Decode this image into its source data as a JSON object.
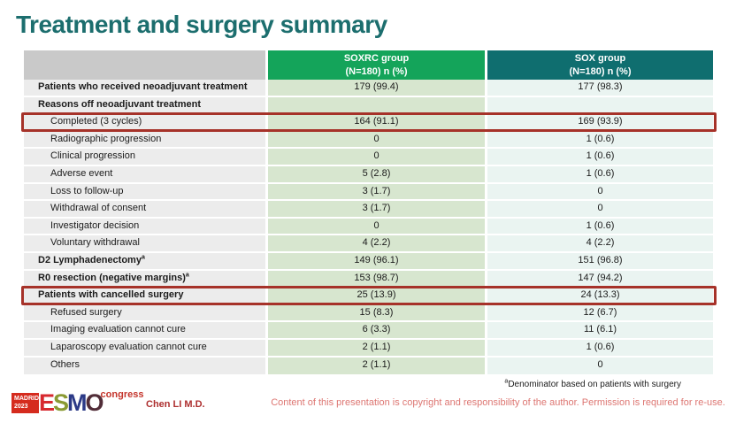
{
  "slide": {
    "title": "Treatment and surgery summary"
  },
  "table": {
    "headers": {
      "col1": "",
      "col2_line1": "SOXRC group",
      "col2_line2": "(N=180)  n (%)",
      "col3_line1": "SOX group",
      "col3_line2": "(N=180)  n (%)"
    },
    "rows": [
      {
        "label": "Patients who received neoadjuvant treatment",
        "bold": true,
        "indent": false,
        "highlight": false,
        "v1": "179 (99.4)",
        "v2": "177 (98.3)"
      },
      {
        "label": "Reasons off neoadjuvant treatment",
        "bold": true,
        "indent": false,
        "highlight": false,
        "v1": "",
        "v2": ""
      },
      {
        "label": "Completed (3 cycles)",
        "bold": false,
        "indent": true,
        "highlight": true,
        "v1": "164 (91.1)",
        "v2": "169 (93.9)"
      },
      {
        "label": "Radiographic progression",
        "bold": false,
        "indent": true,
        "highlight": false,
        "v1": "0",
        "v2": "1 (0.6)"
      },
      {
        "label": "Clinical progression",
        "bold": false,
        "indent": true,
        "highlight": false,
        "v1": "0",
        "v2": "1 (0.6)"
      },
      {
        "label": "Adverse event",
        "bold": false,
        "indent": true,
        "highlight": false,
        "v1": "5 (2.8)",
        "v2": "1 (0.6)"
      },
      {
        "label": "Loss to follow-up",
        "bold": false,
        "indent": true,
        "highlight": false,
        "v1": "3 (1.7)",
        "v2": "0"
      },
      {
        "label": "Withdrawal of consent",
        "bold": false,
        "indent": true,
        "highlight": false,
        "v1": "3 (1.7)",
        "v2": "0"
      },
      {
        "label": "Investigator decision",
        "bold": false,
        "indent": true,
        "highlight": false,
        "v1": "0",
        "v2": "1 (0.6)"
      },
      {
        "label": "Voluntary withdrawal",
        "bold": false,
        "indent": true,
        "highlight": false,
        "v1": "4 (2.2)",
        "v2": "4 (2.2)"
      },
      {
        "label": "D2 Lymphadenectomy",
        "sup": "a",
        "bold": true,
        "indent": false,
        "highlight": false,
        "v1": "149 (96.1)",
        "v2": "151 (96.8)"
      },
      {
        "label": "R0 resection (negative margins)",
        "sup": "a",
        "bold": true,
        "indent": false,
        "highlight": false,
        "v1": "153 (98.7)",
        "v2": "147 (94.2)"
      },
      {
        "label": "Patients with cancelled surgery",
        "bold": true,
        "indent": false,
        "highlight": true,
        "v1": "25 (13.9)",
        "v2": "24 (13.3)"
      },
      {
        "label": "Refused surgery",
        "bold": false,
        "indent": true,
        "highlight": false,
        "v1": "15 (8.3)",
        "v2": "12 (6.7)"
      },
      {
        "label": "Imaging evaluation cannot cure",
        "bold": false,
        "indent": true,
        "highlight": false,
        "v1": "6 (3.3)",
        "v2": "11 (6.1)"
      },
      {
        "label": "Laparoscopy evaluation cannot cure",
        "bold": false,
        "indent": true,
        "highlight": false,
        "v1": "2 (1.1)",
        "v2": "1 (0.6)"
      },
      {
        "label": "Others",
        "bold": false,
        "indent": true,
        "highlight": false,
        "v1": "2 (1.1)",
        "v2": "0"
      }
    ]
  },
  "footnote": {
    "sup": "a",
    "text": "Denominator based on patients with surgery"
  },
  "footer": {
    "logo": {
      "city": "MADRID",
      "year": "2023",
      "letters": [
        {
          "ch": "E",
          "color": "#d7282f"
        },
        {
          "ch": "S",
          "color": "#8a9a33"
        },
        {
          "ch": "M",
          "color": "#2c3a87"
        },
        {
          "ch": "O",
          "color": "#512d38"
        }
      ],
      "congress": "congress"
    },
    "author": "Chen LI M.D.",
    "copyright": "Content of this presentation is copyright and responsibility of the author. Permission is required for re-use."
  },
  "colors": {
    "title": "#1c6e6e",
    "header_green": "#14a45a",
    "header_teal": "#0f6e6f",
    "header_gray": "#c9c9c9",
    "label_cell": "#ececec",
    "soxrc_cell": "#d7e6cf",
    "sox_cell": "#eaf4f1",
    "highlight_border": "#a63229",
    "copyright_text": "#dd7672",
    "author_text": "#ad2f2f"
  }
}
